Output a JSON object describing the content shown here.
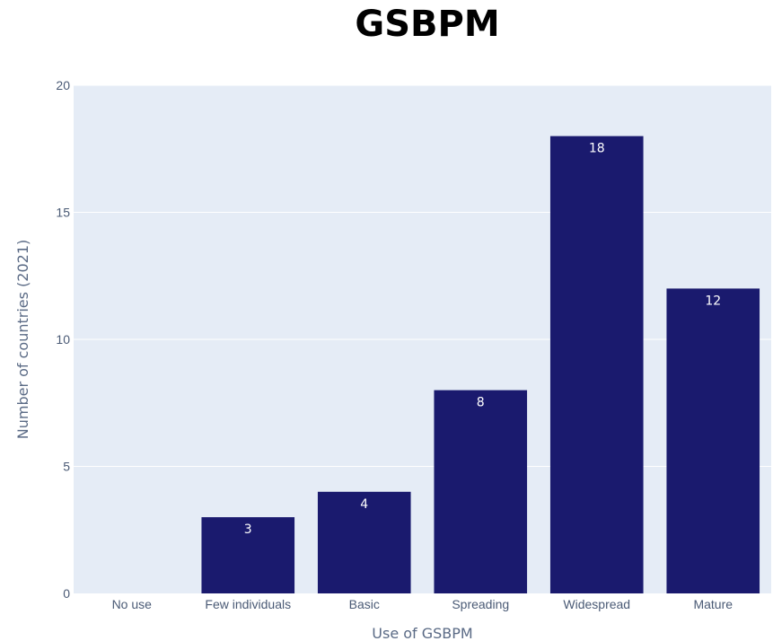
{
  "chart_data": {
    "type": "bar",
    "title": "GSBPM",
    "xlabel": "Use of GSBPM",
    "ylabel": "Number of countries (2021)",
    "categories": [
      "No use",
      "Few individuals",
      "Basic",
      "Spreading",
      "Widespread",
      "Mature"
    ],
    "values": [
      0,
      3,
      4,
      8,
      18,
      12
    ],
    "data_labels": [
      "",
      "3",
      "4",
      "8",
      "18",
      "12"
    ],
    "ylim": [
      0,
      20
    ],
    "yticks": [
      0,
      5,
      10,
      15,
      20
    ],
    "grid": true,
    "legend": "none",
    "colors": {
      "bar": "#1a1a6e",
      "plot_background": "#e5ecf6",
      "grid": "#ffffff"
    }
  }
}
